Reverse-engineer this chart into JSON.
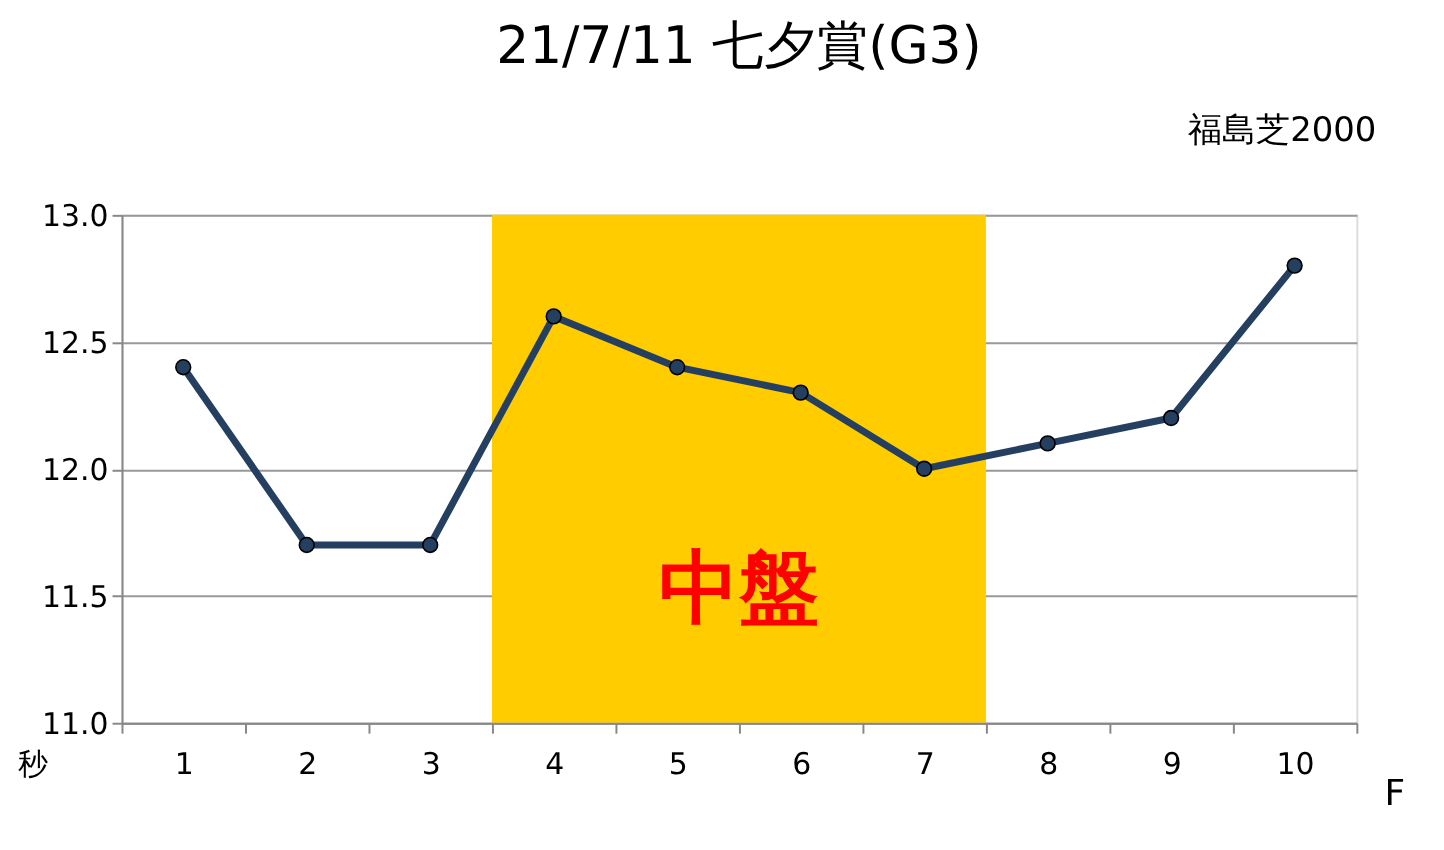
{
  "chart_data": {
    "type": "line",
    "title": "21/7/11 七夕賞(G3)",
    "subtitle": "福島芝2000",
    "xlabel": "F",
    "ylabel": "秒",
    "categories": [
      "1",
      "2",
      "3",
      "4",
      "5",
      "6",
      "7",
      "8",
      "9",
      "10"
    ],
    "series": [
      {
        "color": "#243f60",
        "values": [
          12.4,
          11.7,
          11.7,
          12.6,
          12.4,
          12.3,
          12.0,
          12.1,
          12.2,
          12.8
        ]
      }
    ],
    "ylim": [
      11.0,
      13.0
    ],
    "yticks": [
      {
        "value": 11.0,
        "label": "11.0"
      },
      {
        "value": 11.5,
        "label": "11.5"
      },
      {
        "value": 12.0,
        "label": "12.0"
      },
      {
        "value": 12.5,
        "label": "12.5"
      },
      {
        "value": 13.0,
        "label": "13.0"
      }
    ],
    "bands": [
      {
        "axis": "x",
        "from": "4",
        "to": "7",
        "label": "中盤",
        "color": "#ffcc00"
      }
    ],
    "grid": "y",
    "marker": "circle",
    "line_style": "solid"
  }
}
